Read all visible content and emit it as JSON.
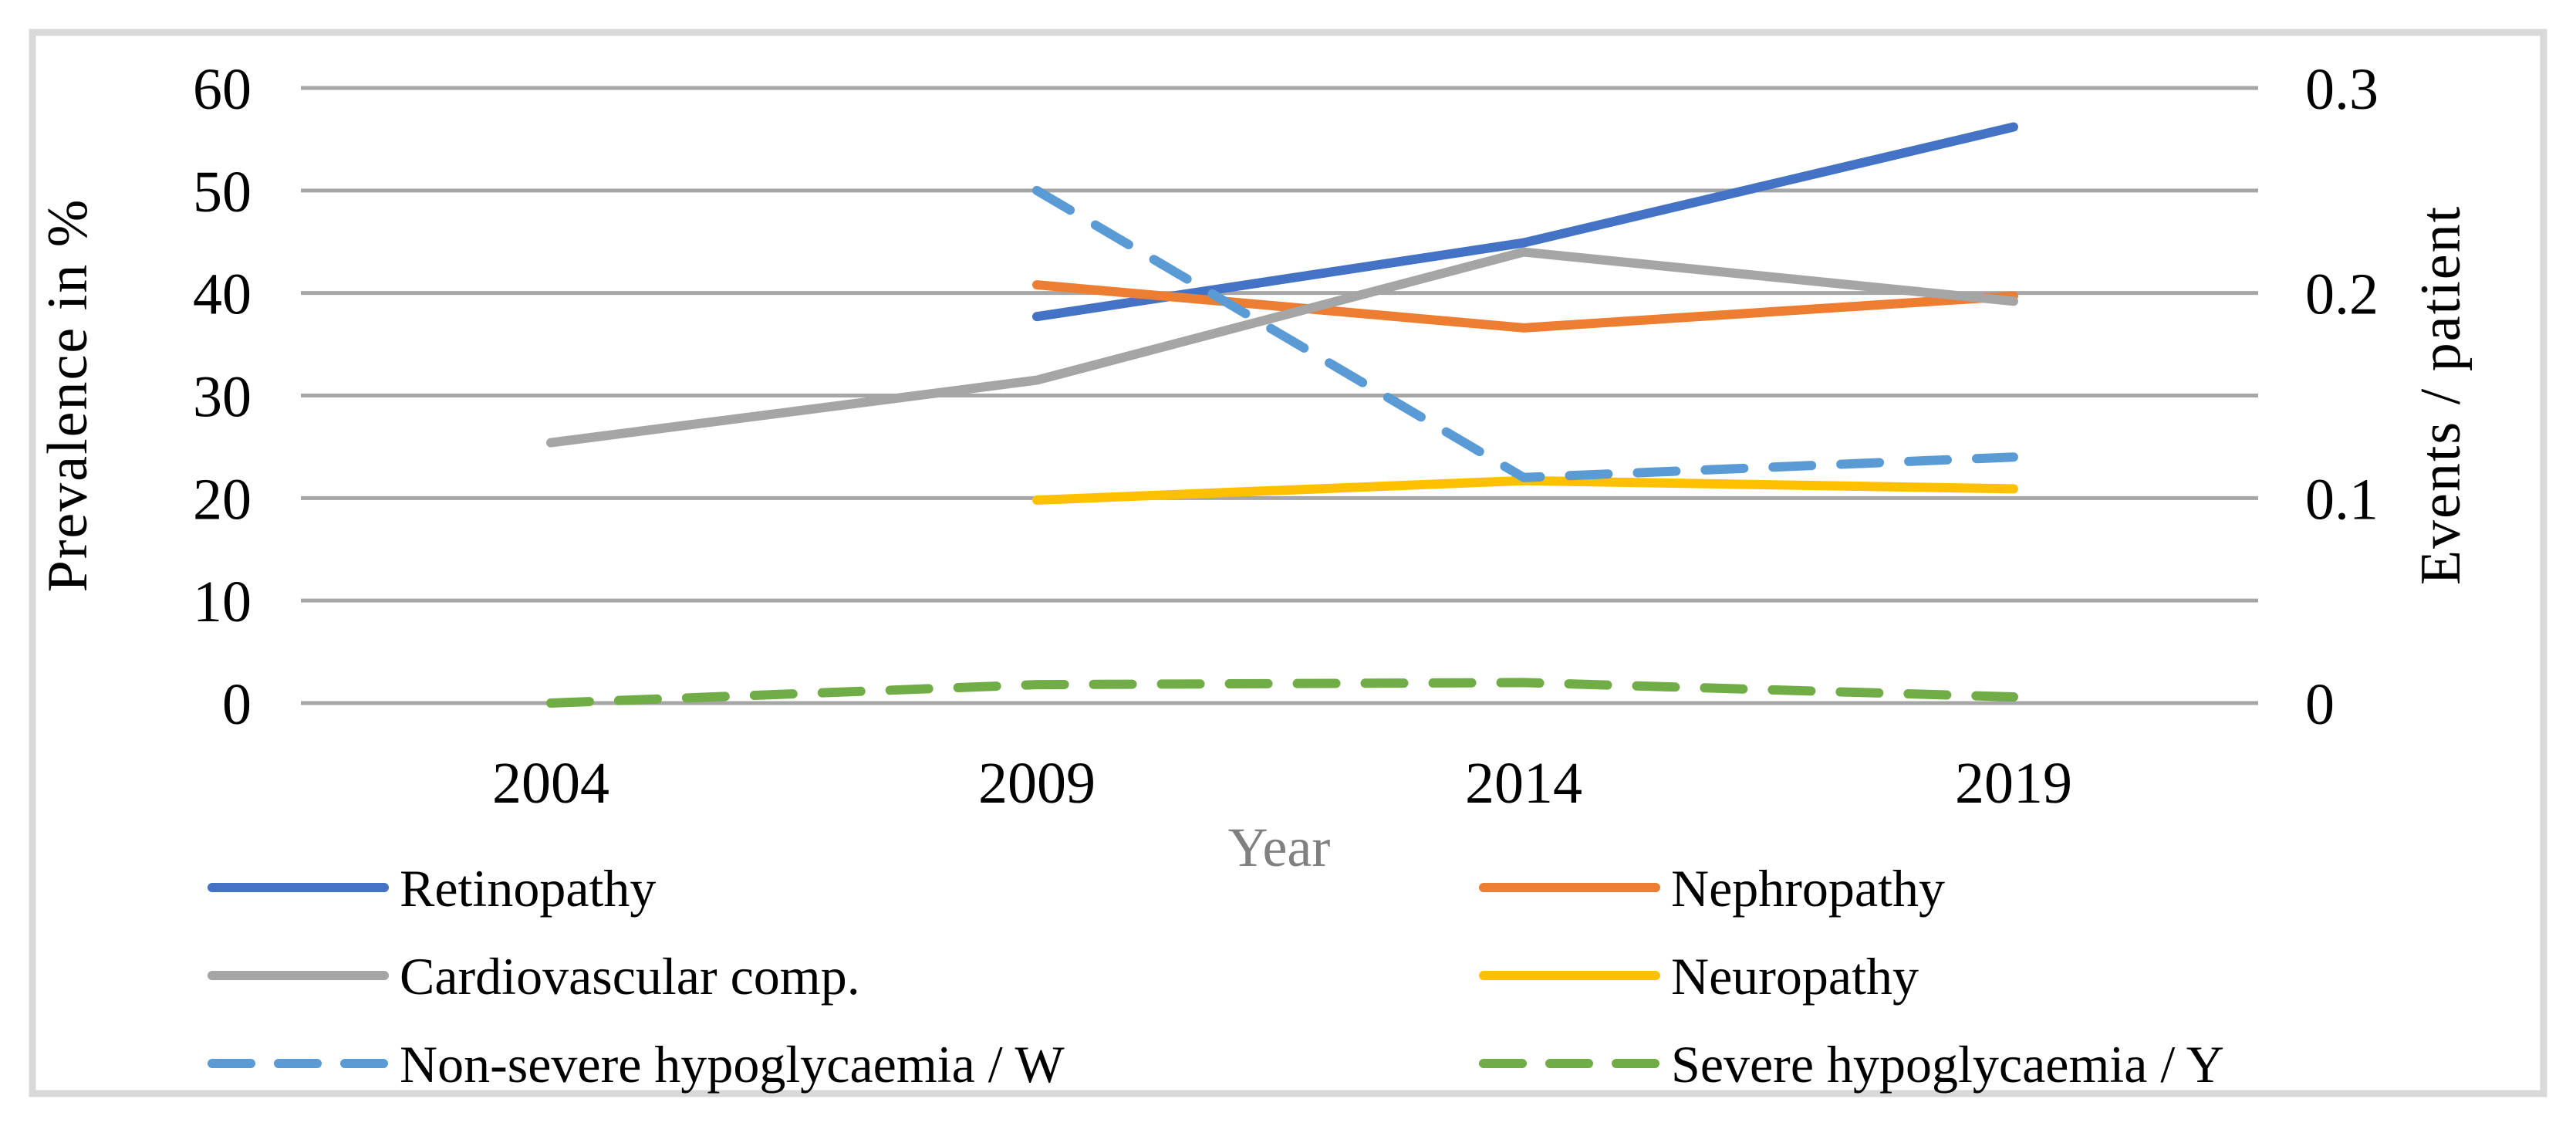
{
  "chart_data": {
    "type": "line",
    "title": "",
    "x": [
      "2004",
      "2009",
      "2014",
      "2019"
    ],
    "xlabel": "Year",
    "left_axis": {
      "label": "Prevalence in %",
      "ticks": [
        0,
        10,
        20,
        30,
        40,
        50,
        60
      ],
      "range": [
        0,
        60
      ]
    },
    "right_axis": {
      "label": "Events / patient",
      "ticks": [
        0,
        0.1,
        0.2,
        0.3
      ],
      "range": [
        0,
        0.3
      ]
    },
    "grid": "horizontal",
    "legend_position": "bottom",
    "series": [
      {
        "name": "Retinopathy",
        "axis": "left",
        "color": "#4472C4",
        "dashed": false,
        "values": [
          null,
          37.7,
          44.9,
          56.2
        ]
      },
      {
        "name": "Nephropathy",
        "axis": "left",
        "color": "#ED7D31",
        "dashed": false,
        "values": [
          null,
          40.8,
          36.6,
          39.7
        ]
      },
      {
        "name": "Cardiovascular comp.",
        "axis": "left",
        "color": "#A5A5A5",
        "dashed": false,
        "values": [
          25.4,
          31.5,
          44.0,
          39.2
        ]
      },
      {
        "name": "Neuropathy",
        "axis": "left",
        "color": "#FFC000",
        "dashed": false,
        "values": [
          null,
          19.8,
          21.7,
          20.9
        ]
      },
      {
        "name": "Non-severe hypoglycaemia / W",
        "axis": "right",
        "color": "#5B9BD5",
        "dashed": true,
        "values": [
          null,
          0.25,
          0.11,
          0.12
        ]
      },
      {
        "name": "Severe hypoglycaemia / Y",
        "axis": "right",
        "color": "#70AD47",
        "dashed": true,
        "values": [
          0,
          0.009,
          0.01,
          0.003
        ]
      }
    ]
  }
}
